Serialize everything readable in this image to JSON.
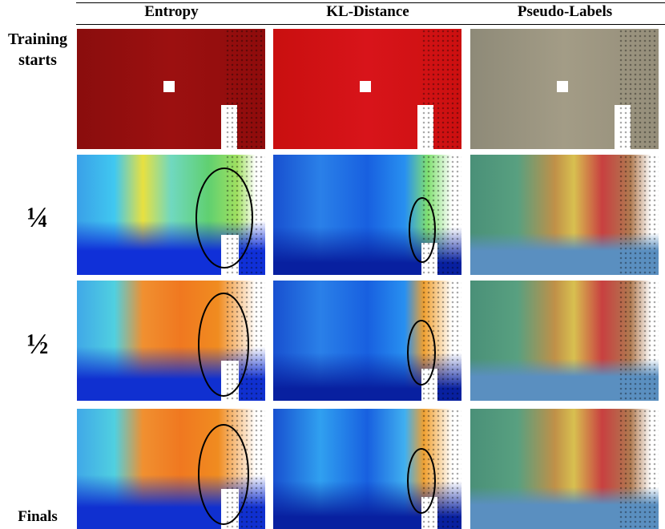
{
  "columns": [
    "Entropy",
    "KL-Distance",
    "Pseudo-Labels"
  ],
  "rows": [
    "Training starts",
    "¼",
    "½",
    "Finals"
  ]
}
